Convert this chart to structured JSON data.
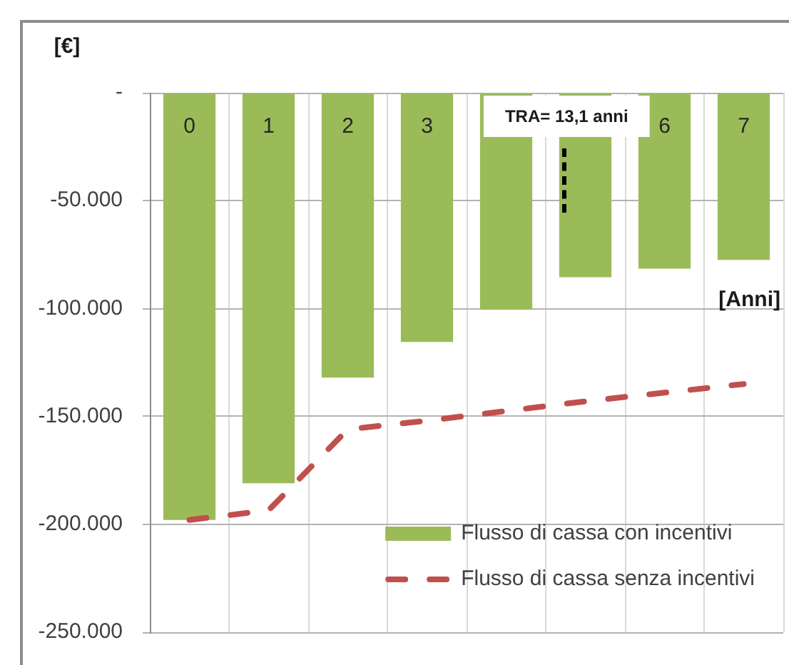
{
  "chart_data": {
    "type": "bar",
    "ylabel": "[€]",
    "xlabel": "[Anni]",
    "categories": [
      "0",
      "1",
      "2",
      "3",
      null,
      null,
      "6",
      "7"
    ],
    "series": [
      {
        "name": "Flusso di cassa con incentivi",
        "color": "#9bbb59",
        "values": [
          -198000,
          -181000,
          -132000,
          -115500,
          -100500,
          -85500,
          -81500,
          -77500
        ]
      },
      {
        "name": "Flusso di cassa senza incentivi",
        "type": "line",
        "color": "#c0504d",
        "line_style": "dashed",
        "values": [
          -198000,
          -193500,
          -156000,
          -152000,
          -147500,
          -143000,
          -139000,
          -135000
        ]
      }
    ],
    "ylim": [
      -250000,
      0
    ],
    "yticks": [
      {
        "value": 0,
        "label": "-"
      },
      {
        "value": -50000,
        "label": "-50.000"
      },
      {
        "value": -100000,
        "label": "-100.000"
      },
      {
        "value": -150000,
        "label": "-150.000"
      },
      {
        "value": -200000,
        "label": "-200.000"
      },
      {
        "value": -250000,
        "label": "-250.000"
      }
    ],
    "grid": true,
    "legend": "bottom right",
    "annotations": [
      "TRA= 13,1 anni"
    ]
  }
}
